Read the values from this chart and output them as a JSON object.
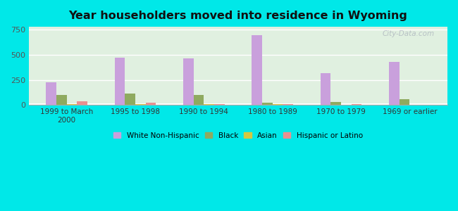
{
  "title": "Year householders moved into residence in Wyoming",
  "categories": [
    "1999 to March\n2000",
    "1995 to 1998",
    "1990 to 1994",
    "1980 to 1989",
    "1970 to 1979",
    "1969 or earlier"
  ],
  "series": {
    "White Non-Hispanic": [
      230,
      470,
      465,
      695,
      315,
      430
    ],
    "Black": [
      100,
      115,
      100,
      25,
      30,
      58
    ],
    "Asian": [
      12,
      8,
      8,
      12,
      4,
      4
    ],
    "Hispanic or Latino": [
      35,
      25,
      8,
      8,
      6,
      4
    ]
  },
  "colors": {
    "White Non-Hispanic": "#c9a0dc",
    "Black": "#8faa60",
    "Asian": "#d4c840",
    "Hispanic or Latino": "#e89090"
  },
  "bar_width": 0.15,
  "ylim": [
    0,
    780
  ],
  "yticks": [
    0,
    250,
    500,
    750
  ],
  "outer_bg": "#00e8e8",
  "plot_bg_top": "#f0fff0",
  "plot_bg_bottom": "#d0ecd0",
  "watermark": "City-Data.com",
  "legend_labels": [
    "White Non-Hispanic",
    "Black",
    "Asian",
    "Hispanic or Latino"
  ]
}
